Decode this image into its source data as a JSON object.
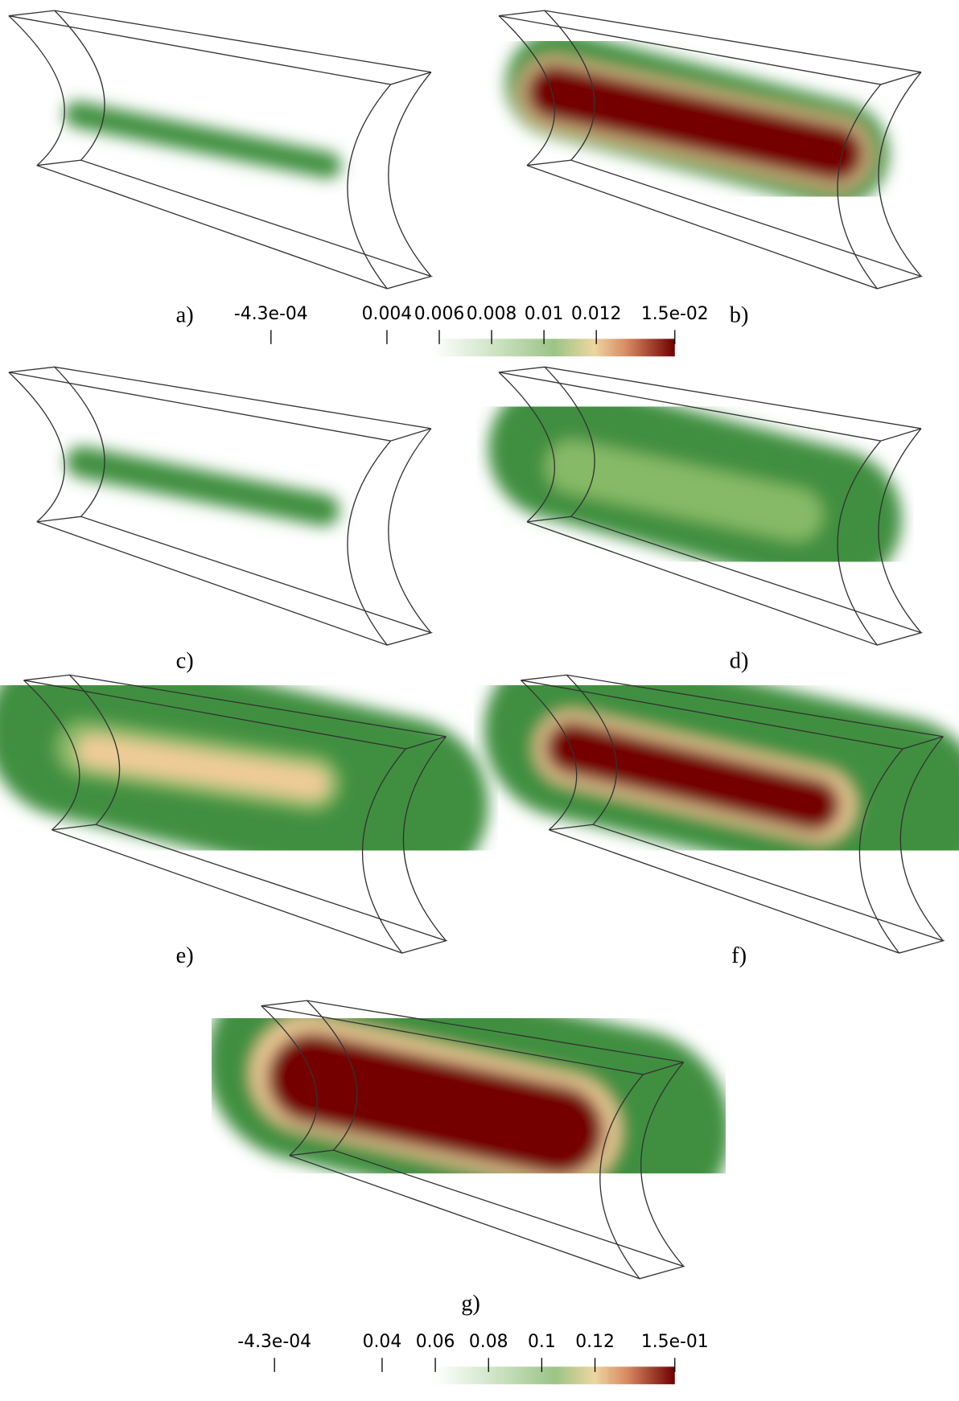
{
  "panels": [
    {
      "label": "a)"
    },
    {
      "label": "b)"
    },
    {
      "label": "c)"
    },
    {
      "label": "d)"
    },
    {
      "label": "e)"
    },
    {
      "label": "f)"
    },
    {
      "label": "g)"
    }
  ],
  "colorbars": [
    {
      "lim": [
        -0.00043,
        0.015
      ],
      "ticks": [
        {
          "value": -0.00043,
          "label": "-4.3e-04"
        },
        0.004,
        0.006,
        0.008,
        0.01,
        0.012,
        {
          "value": 0.015,
          "label": "1.5e-02"
        }
      ]
    },
    {
      "lim": [
        -0.00043,
        0.15
      ],
      "ticks": [
        {
          "value": -0.00043,
          "label": "-4.3e-04"
        },
        0.04,
        0.06,
        0.08,
        0.1,
        0.12,
        {
          "value": 0.15,
          "label": "1.5e-01"
        }
      ]
    }
  ]
}
